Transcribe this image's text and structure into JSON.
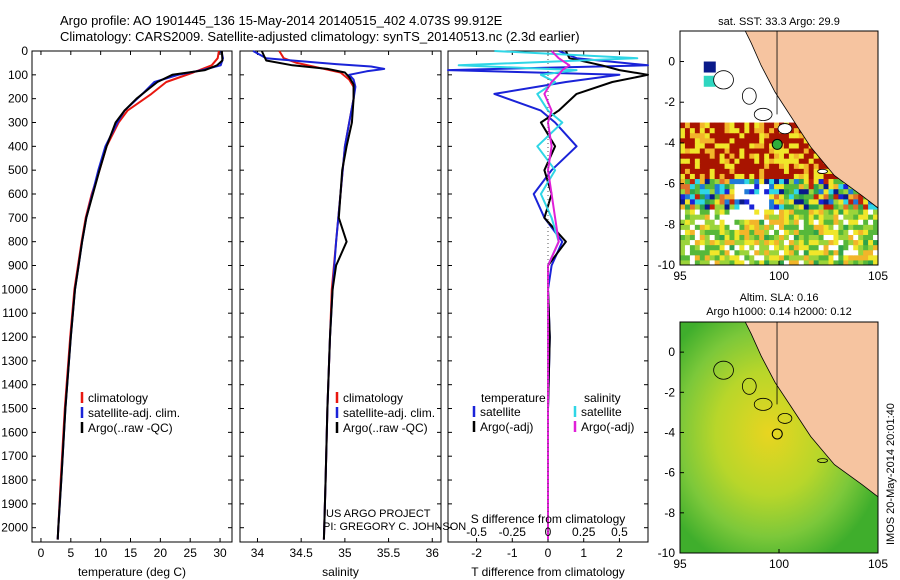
{
  "header": {
    "line1": "Argo profile: AO 1901445_136 15-May-2014 20140515_402 4.073S 99.912E",
    "line2": "Climatology: CARS2009. Satellite-adjusted climatology: synTS_20140513.nc (2.3d earlier)"
  },
  "credits": {
    "project": "US ARGO PROJECT",
    "pi": "PI: GREGORY C. JOHNSON",
    "imos": "IMOS 20-May-2014 20:01:40"
  },
  "colors": {
    "climatology": "#e8170f",
    "satellite": "#1a23d8",
    "argo": "#000000",
    "satellite_salinity": "#2fd6e6",
    "argo_salinity_diff": "#e020d8",
    "land": "#f6c4a0",
    "sst_hot": "#a81400"
  },
  "chart_data": [
    {
      "type": "line",
      "panel": "temperature",
      "xlabel": "temperature (deg C)",
      "ylabel": "",
      "xlim": [
        -1.5,
        32
      ],
      "ylim": [
        2060,
        0
      ],
      "xticks": [
        "0",
        "5",
        "10",
        "15",
        "20",
        "25",
        "30"
      ],
      "xtick_values": [
        0,
        5,
        10,
        15,
        20,
        25,
        30
      ],
      "yticks": [
        "0",
        "100",
        "200",
        "300",
        "400",
        "500",
        "600",
        "700",
        "800",
        "900",
        "1000",
        "1100",
        "1200",
        "1300",
        "1400",
        "1500",
        "1600",
        "1700",
        "1800",
        "1900",
        "2000"
      ],
      "legend": [
        "climatology",
        "satellite-adj. clim.",
        "Argo(..raw -QC)"
      ],
      "series": [
        {
          "name": "climatology",
          "color": "#e8170f",
          "y": [
            0,
            30,
            60,
            90,
            130,
            180,
            250,
            300,
            400,
            500,
            600,
            700,
            800,
            900,
            1000,
            1200,
            1500,
            1800,
            2000,
            2050
          ],
          "x": [
            29.8,
            29.6,
            28.6,
            25.5,
            21.0,
            18.5,
            14.5,
            13.0,
            11.0,
            9.8,
            8.5,
            7.5,
            6.8,
            6.2,
            5.6,
            4.9,
            4.0,
            3.3,
            2.9,
            2.8
          ]
        },
        {
          "name": "satellite-adj. clim.",
          "color": "#1a23d8",
          "y": [
            0,
            30,
            60,
            80,
            100,
            130,
            180,
            250,
            300,
            400,
            500,
            600,
            700,
            800,
            900,
            1000,
            1200,
            1500,
            1800,
            2000,
            2050
          ],
          "x": [
            30.2,
            30.5,
            30.1,
            27.0,
            23.0,
            19.0,
            17.0,
            14.0,
            12.8,
            10.8,
            9.6,
            8.6,
            7.6,
            6.9,
            6.3,
            5.7,
            5.0,
            4.1,
            3.4,
            2.9,
            2.8
          ]
        },
        {
          "name": "Argo(..raw -QC)",
          "color": "#000000",
          "y": [
            0,
            40,
            60,
            80,
            100,
            130,
            160,
            200,
            250,
            300,
            400,
            500,
            600,
            700,
            800,
            900,
            1000,
            1200,
            1500,
            1800,
            2000,
            2050
          ],
          "x": [
            30.3,
            30.4,
            29.5,
            27.5,
            22.0,
            19.5,
            18.0,
            16.0,
            14.0,
            12.5,
            11.0,
            9.8,
            8.7,
            7.6,
            6.9,
            6.3,
            5.7,
            5.0,
            4.1,
            3.4,
            2.9,
            2.8
          ]
        }
      ]
    },
    {
      "type": "line",
      "panel": "salinity",
      "xlabel": "salinity",
      "xlim": [
        33.8,
        36.1
      ],
      "ylim": [
        2060,
        0
      ],
      "xticks": [
        "34",
        "34.5",
        "35",
        "35.5",
        "36"
      ],
      "xtick_values": [
        34,
        34.5,
        35,
        35.5,
        36
      ],
      "legend": [
        "climatology",
        "satellite-adj. clim.",
        "Argo(..raw -QC)"
      ],
      "series": [
        {
          "name": "climatology",
          "color": "#e8170f",
          "y": [
            0,
            30,
            50,
            70,
            90,
            120,
            150,
            200,
            300,
            400,
            600,
            800,
            1000,
            1200,
            1500,
            1800,
            2050
          ],
          "x": [
            34.25,
            34.3,
            34.45,
            34.7,
            34.95,
            35.05,
            35.1,
            35.1,
            35.05,
            35.0,
            34.95,
            34.9,
            34.85,
            34.83,
            34.8,
            34.78,
            34.76
          ]
        },
        {
          "name": "satellite-adj. clim.",
          "color": "#1a23d8",
          "y": [
            0,
            30,
            40,
            55,
            65,
            75,
            85,
            100,
            120,
            150,
            200,
            300,
            400,
            600,
            800,
            1000,
            1200,
            1500,
            1800,
            2050
          ],
          "x": [
            33.95,
            34.1,
            34.4,
            34.9,
            35.3,
            35.45,
            35.25,
            35.05,
            35.1,
            35.12,
            35.1,
            35.05,
            35.0,
            34.95,
            34.9,
            34.86,
            34.83,
            34.8,
            34.78,
            34.76
          ]
        },
        {
          "name": "Argo(..raw -QC)",
          "color": "#000000",
          "y": [
            0,
            40,
            60,
            75,
            90,
            110,
            140,
            200,
            300,
            400,
            500,
            600,
            700,
            800,
            900,
            1000,
            1200,
            1500,
            1800,
            2050
          ],
          "x": [
            34.05,
            34.1,
            34.4,
            34.8,
            35.0,
            35.05,
            35.1,
            35.1,
            35.08,
            35.02,
            34.97,
            34.95,
            34.93,
            35.02,
            34.9,
            34.86,
            34.83,
            34.8,
            34.78,
            34.76
          ]
        }
      ]
    },
    {
      "type": "line",
      "panel": "difference",
      "xlabel": "T difference from climatology",
      "x2label": "S difference from climatology",
      "xlim": [
        -2.8,
        2.8
      ],
      "ylim": [
        2060,
        0
      ],
      "xticks": [
        "-2",
        "-1",
        "0",
        "1",
        "2"
      ],
      "xtick_values": [
        -2,
        -1,
        0,
        1,
        2
      ],
      "x2ticks": [
        "-0.5",
        "-0.25",
        "0",
        "0.25",
        "0.5"
      ],
      "x2tick_values": [
        -0.5,
        -0.25,
        0,
        0.25,
        0.5
      ],
      "legend": [
        "temperature",
        "satellite",
        "Argo(-adj)",
        "salinity",
        "satellite",
        "Argo(-adj)"
      ],
      "series": [
        {
          "name": "temperature satellite",
          "color": "#1a23d8",
          "y": [
            0,
            30,
            60,
            80,
            100,
            130,
            180,
            250,
            300,
            400,
            500,
            600,
            700,
            800,
            900,
            1000,
            1200,
            1500,
            1800,
            2050
          ],
          "x": [
            0.3,
            0.8,
            2.8,
            -2.8,
            2.0,
            0.5,
            -1.5,
            -0.2,
            0.2,
            0.8,
            0.1,
            -0.4,
            -0.1,
            0.4,
            0.1,
            0.0,
            0.05,
            0.0,
            0.0,
            0.0
          ]
        },
        {
          "name": "temperature Argo(-adj)",
          "color": "#000000",
          "y": [
            0,
            30,
            60,
            80,
            100,
            130,
            180,
            250,
            300,
            400,
            500,
            600,
            700,
            800,
            900,
            1000,
            1200,
            1500,
            1800,
            2050
          ],
          "x": [
            0.5,
            0.6,
            1.5,
            2.0,
            2.8,
            1.8,
            0.8,
            0.3,
            -0.2,
            0.2,
            -0.1,
            0.1,
            -0.1,
            0.5,
            0.0,
            0.0,
            0.05,
            0.0,
            0.0,
            0.0
          ]
        },
        {
          "name": "salinity satellite",
          "color": "#2fd6e6",
          "y": [
            0,
            30,
            60,
            80,
            100,
            130,
            180,
            250,
            300,
            400,
            500,
            600,
            700,
            800,
            900,
            1000,
            1200,
            1500,
            1800,
            2050
          ],
          "x": [
            -1.5,
            2.5,
            -2.5,
            0.8,
            -0.2,
            0.2,
            -0.3,
            0.0,
            0.4,
            -0.3,
            0.2,
            -0.2,
            0.1,
            0.3,
            0.0,
            0.0,
            0.0,
            0.0,
            0.0,
            0.0
          ]
        },
        {
          "name": "salinity Argo(-adj)",
          "color": "#e020d8",
          "y": [
            0,
            30,
            60,
            80,
            100,
            130,
            180,
            250,
            300,
            400,
            500,
            600,
            700,
            800,
            900,
            1000,
            1200,
            1500,
            1800,
            2050
          ],
          "x": [
            0.1,
            0.3,
            0.6,
            0.4,
            0.3,
            0.1,
            -0.1,
            0.1,
            0.0,
            0.1,
            0.0,
            0.1,
            0.2,
            0.3,
            0.0,
            0.0,
            0.0,
            0.0,
            0.0,
            0.0
          ]
        }
      ]
    },
    {
      "type": "heatmap",
      "panel": "sst-map",
      "title": "sat. SST: 33.3 Argo: 29.9",
      "xlim": [
        95,
        105
      ],
      "ylim": [
        -10,
        1.5
      ],
      "xticks": [
        "95",
        "100",
        "105"
      ],
      "xtick_values": [
        95,
        100,
        105
      ],
      "yticks": [
        "0",
        "-2",
        "-4",
        "-6",
        "-8",
        "-10"
      ],
      "ytick_values": [
        0,
        -2,
        -4,
        -6,
        -8,
        -10
      ],
      "argo_location": [
        99.912,
        -4.073
      ]
    },
    {
      "type": "heatmap",
      "panel": "sla-map",
      "title": "Altim. SLA: 0.16",
      "subtitle": "Argo h1000: 0.14 h2000: 0.12",
      "xlim": [
        95,
        105
      ],
      "ylim": [
        -10,
        1.5
      ],
      "xticks": [
        "95",
        "100",
        "105"
      ],
      "xtick_values": [
        95,
        100,
        105
      ],
      "yticks": [
        "0",
        "-2",
        "-4",
        "-6",
        "-8",
        "-10"
      ],
      "ytick_values": [
        0,
        -2,
        -4,
        -6,
        -8,
        -10
      ],
      "argo_location": [
        99.912,
        -4.073
      ]
    }
  ]
}
